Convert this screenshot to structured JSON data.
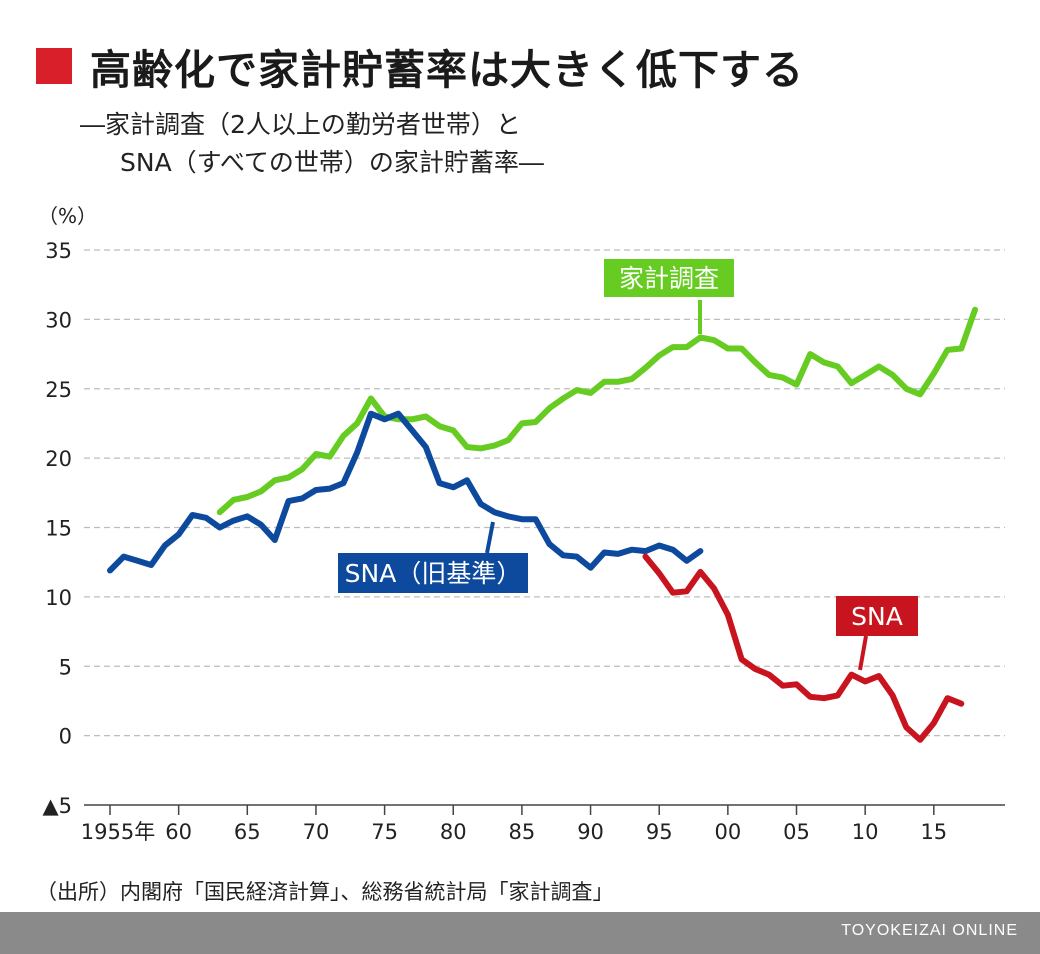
{
  "title": "高齢化で家計貯蓄率は大きく低下する",
  "subtitle_line1": "―家計調査（2人以上の勤労者世帯）と",
  "subtitle_line2": "SNA（すべての世帯）の家計貯蓄率―",
  "source": "（出所）内閣府「国民経済計算」、総務省統計局「家計調査」",
  "credit": "TOYOKEIZAI ONLINE",
  "colors": {
    "kakei": "#66cc22",
    "sna_old": "#0d4a9e",
    "sna": "#c8141e",
    "accent": "#d9202a"
  },
  "chart_data": {
    "type": "line",
    "ylabel": "（%）",
    "ylim": [
      -5,
      35
    ],
    "yticks": [
      -5,
      0,
      5,
      10,
      15,
      20,
      25,
      30,
      35
    ],
    "ytick_labels": [
      "▲5",
      "0",
      "5",
      "10",
      "15",
      "20",
      "25",
      "30",
      "35"
    ],
    "xlim": [
      1955,
      2018
    ],
    "xticks": [
      1955,
      1960,
      1965,
      1970,
      1975,
      1980,
      1985,
      1990,
      1995,
      2000,
      2005,
      2010,
      2015
    ],
    "xtick_labels": [
      "1955年",
      "60",
      "65",
      "70",
      "75",
      "80",
      "85",
      "90",
      "95",
      "00",
      "05",
      "10",
      "15"
    ],
    "grid": true,
    "series": [
      {
        "name": "家計調査",
        "label": "家計調査",
        "color_key": "kakei",
        "x": [
          1963,
          1964,
          1965,
          1966,
          1967,
          1968,
          1969,
          1970,
          1971,
          1972,
          1973,
          1974,
          1975,
          1976,
          1977,
          1978,
          1979,
          1980,
          1981,
          1982,
          1983,
          1984,
          1985,
          1986,
          1987,
          1988,
          1989,
          1990,
          1991,
          1992,
          1993,
          1994,
          1995,
          1996,
          1997,
          1998,
          1999,
          2000,
          2001,
          2002,
          2003,
          2004,
          2005,
          2006,
          2007,
          2008,
          2009,
          2010,
          2011,
          2012,
          2013,
          2014,
          2015,
          2016,
          2017,
          2018
        ],
        "values": [
          16.1,
          17.0,
          17.2,
          17.6,
          18.4,
          18.6,
          19.2,
          20.3,
          20.1,
          21.6,
          22.5,
          24.3,
          23.0,
          22.8,
          22.8,
          23.0,
          22.3,
          22.0,
          20.8,
          20.7,
          20.9,
          21.3,
          22.5,
          22.6,
          23.6,
          24.3,
          24.9,
          24.7,
          25.5,
          25.5,
          25.7,
          26.5,
          27.4,
          28.0,
          28.0,
          28.7,
          28.5,
          27.9,
          27.9,
          26.9,
          26.0,
          25.8,
          25.3,
          27.5,
          26.9,
          26.6,
          25.4,
          26.0,
          26.6,
          26.0,
          25.0,
          24.6,
          26.1,
          27.8,
          27.9,
          30.7
        ],
        "callout_year": 1998
      },
      {
        "name": "SNA（旧基準）",
        "label": "SNA（旧基準）",
        "color_key": "sna_old",
        "x": [
          1955,
          1956,
          1957,
          1958,
          1959,
          1960,
          1961,
          1962,
          1963,
          1964,
          1965,
          1966,
          1967,
          1968,
          1969,
          1970,
          1971,
          1972,
          1973,
          1974,
          1975,
          1976,
          1977,
          1978,
          1979,
          1980,
          1981,
          1982,
          1983,
          1984,
          1985,
          1986,
          1987,
          1988,
          1989,
          1990,
          1991,
          1992,
          1993,
          1994,
          1995,
          1996,
          1997,
          1998
        ],
        "values": [
          11.9,
          12.9,
          12.6,
          12.3,
          13.7,
          14.5,
          15.9,
          15.7,
          15.0,
          15.5,
          15.8,
          15.2,
          14.1,
          16.9,
          17.1,
          17.7,
          17.8,
          18.2,
          20.4,
          23.2,
          22.8,
          23.2,
          22.0,
          20.8,
          18.2,
          17.9,
          18.4,
          16.7,
          16.1,
          15.8,
          15.6,
          15.6,
          13.8,
          13.0,
          12.9,
          12.1,
          13.2,
          13.1,
          13.4,
          13.3,
          13.7,
          13.4,
          12.6,
          13.3
        ],
        "callout_year": 1983
      },
      {
        "name": "SNA",
        "label": "SNA",
        "color_key": "sna",
        "x": [
          1994,
          1995,
          1996,
          1997,
          1998,
          1999,
          2000,
          2001,
          2002,
          2003,
          2004,
          2005,
          2006,
          2007,
          2008,
          2009,
          2010,
          2011,
          2012,
          2013,
          2014,
          2015,
          2016,
          2017
        ],
        "values": [
          12.9,
          11.7,
          10.3,
          10.4,
          11.8,
          10.6,
          8.7,
          5.5,
          4.8,
          4.4,
          3.6,
          3.7,
          2.8,
          2.7,
          2.9,
          4.4,
          3.9,
          4.3,
          2.9,
          0.6,
          -0.3,
          0.9,
          2.7,
          2.3
        ],
        "callout_year": 2009
      }
    ]
  }
}
